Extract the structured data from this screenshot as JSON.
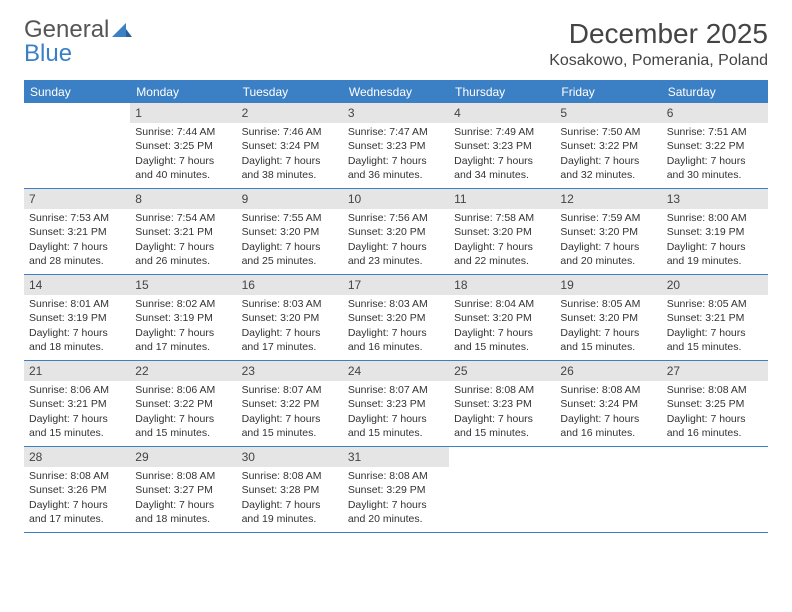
{
  "brand": {
    "name_a": "General",
    "name_b": "Blue"
  },
  "title": "December 2025",
  "location": "Kosakowo, Pomerania, Poland",
  "accent_color": "#3b7fc4",
  "daynum_bg": "#e5e5e5",
  "border_color": "#3b7fc4",
  "text_color": "#333333",
  "day_headers": [
    "Sunday",
    "Monday",
    "Tuesday",
    "Wednesday",
    "Thursday",
    "Friday",
    "Saturday"
  ],
  "cells": [
    {
      "day": "",
      "sunrise": "",
      "sunset": "",
      "daylight": ""
    },
    {
      "day": "1",
      "sunrise": "Sunrise: 7:44 AM",
      "sunset": "Sunset: 3:25 PM",
      "daylight": "Daylight: 7 hours and 40 minutes."
    },
    {
      "day": "2",
      "sunrise": "Sunrise: 7:46 AM",
      "sunset": "Sunset: 3:24 PM",
      "daylight": "Daylight: 7 hours and 38 minutes."
    },
    {
      "day": "3",
      "sunrise": "Sunrise: 7:47 AM",
      "sunset": "Sunset: 3:23 PM",
      "daylight": "Daylight: 7 hours and 36 minutes."
    },
    {
      "day": "4",
      "sunrise": "Sunrise: 7:49 AM",
      "sunset": "Sunset: 3:23 PM",
      "daylight": "Daylight: 7 hours and 34 minutes."
    },
    {
      "day": "5",
      "sunrise": "Sunrise: 7:50 AM",
      "sunset": "Sunset: 3:22 PM",
      "daylight": "Daylight: 7 hours and 32 minutes."
    },
    {
      "day": "6",
      "sunrise": "Sunrise: 7:51 AM",
      "sunset": "Sunset: 3:22 PM",
      "daylight": "Daylight: 7 hours and 30 minutes."
    },
    {
      "day": "7",
      "sunrise": "Sunrise: 7:53 AM",
      "sunset": "Sunset: 3:21 PM",
      "daylight": "Daylight: 7 hours and 28 minutes."
    },
    {
      "day": "8",
      "sunrise": "Sunrise: 7:54 AM",
      "sunset": "Sunset: 3:21 PM",
      "daylight": "Daylight: 7 hours and 26 minutes."
    },
    {
      "day": "9",
      "sunrise": "Sunrise: 7:55 AM",
      "sunset": "Sunset: 3:20 PM",
      "daylight": "Daylight: 7 hours and 25 minutes."
    },
    {
      "day": "10",
      "sunrise": "Sunrise: 7:56 AM",
      "sunset": "Sunset: 3:20 PM",
      "daylight": "Daylight: 7 hours and 23 minutes."
    },
    {
      "day": "11",
      "sunrise": "Sunrise: 7:58 AM",
      "sunset": "Sunset: 3:20 PM",
      "daylight": "Daylight: 7 hours and 22 minutes."
    },
    {
      "day": "12",
      "sunrise": "Sunrise: 7:59 AM",
      "sunset": "Sunset: 3:20 PM",
      "daylight": "Daylight: 7 hours and 20 minutes."
    },
    {
      "day": "13",
      "sunrise": "Sunrise: 8:00 AM",
      "sunset": "Sunset: 3:19 PM",
      "daylight": "Daylight: 7 hours and 19 minutes."
    },
    {
      "day": "14",
      "sunrise": "Sunrise: 8:01 AM",
      "sunset": "Sunset: 3:19 PM",
      "daylight": "Daylight: 7 hours and 18 minutes."
    },
    {
      "day": "15",
      "sunrise": "Sunrise: 8:02 AM",
      "sunset": "Sunset: 3:19 PM",
      "daylight": "Daylight: 7 hours and 17 minutes."
    },
    {
      "day": "16",
      "sunrise": "Sunrise: 8:03 AM",
      "sunset": "Sunset: 3:20 PM",
      "daylight": "Daylight: 7 hours and 17 minutes."
    },
    {
      "day": "17",
      "sunrise": "Sunrise: 8:03 AM",
      "sunset": "Sunset: 3:20 PM",
      "daylight": "Daylight: 7 hours and 16 minutes."
    },
    {
      "day": "18",
      "sunrise": "Sunrise: 8:04 AM",
      "sunset": "Sunset: 3:20 PM",
      "daylight": "Daylight: 7 hours and 15 minutes."
    },
    {
      "day": "19",
      "sunrise": "Sunrise: 8:05 AM",
      "sunset": "Sunset: 3:20 PM",
      "daylight": "Daylight: 7 hours and 15 minutes."
    },
    {
      "day": "20",
      "sunrise": "Sunrise: 8:05 AM",
      "sunset": "Sunset: 3:21 PM",
      "daylight": "Daylight: 7 hours and 15 minutes."
    },
    {
      "day": "21",
      "sunrise": "Sunrise: 8:06 AM",
      "sunset": "Sunset: 3:21 PM",
      "daylight": "Daylight: 7 hours and 15 minutes."
    },
    {
      "day": "22",
      "sunrise": "Sunrise: 8:06 AM",
      "sunset": "Sunset: 3:22 PM",
      "daylight": "Daylight: 7 hours and 15 minutes."
    },
    {
      "day": "23",
      "sunrise": "Sunrise: 8:07 AM",
      "sunset": "Sunset: 3:22 PM",
      "daylight": "Daylight: 7 hours and 15 minutes."
    },
    {
      "day": "24",
      "sunrise": "Sunrise: 8:07 AM",
      "sunset": "Sunset: 3:23 PM",
      "daylight": "Daylight: 7 hours and 15 minutes."
    },
    {
      "day": "25",
      "sunrise": "Sunrise: 8:08 AM",
      "sunset": "Sunset: 3:23 PM",
      "daylight": "Daylight: 7 hours and 15 minutes."
    },
    {
      "day": "26",
      "sunrise": "Sunrise: 8:08 AM",
      "sunset": "Sunset: 3:24 PM",
      "daylight": "Daylight: 7 hours and 16 minutes."
    },
    {
      "day": "27",
      "sunrise": "Sunrise: 8:08 AM",
      "sunset": "Sunset: 3:25 PM",
      "daylight": "Daylight: 7 hours and 16 minutes."
    },
    {
      "day": "28",
      "sunrise": "Sunrise: 8:08 AM",
      "sunset": "Sunset: 3:26 PM",
      "daylight": "Daylight: 7 hours and 17 minutes."
    },
    {
      "day": "29",
      "sunrise": "Sunrise: 8:08 AM",
      "sunset": "Sunset: 3:27 PM",
      "daylight": "Daylight: 7 hours and 18 minutes."
    },
    {
      "day": "30",
      "sunrise": "Sunrise: 8:08 AM",
      "sunset": "Sunset: 3:28 PM",
      "daylight": "Daylight: 7 hours and 19 minutes."
    },
    {
      "day": "31",
      "sunrise": "Sunrise: 8:08 AM",
      "sunset": "Sunset: 3:29 PM",
      "daylight": "Daylight: 7 hours and 20 minutes."
    },
    {
      "day": "",
      "sunrise": "",
      "sunset": "",
      "daylight": ""
    },
    {
      "day": "",
      "sunrise": "",
      "sunset": "",
      "daylight": ""
    },
    {
      "day": "",
      "sunrise": "",
      "sunset": "",
      "daylight": ""
    }
  ]
}
